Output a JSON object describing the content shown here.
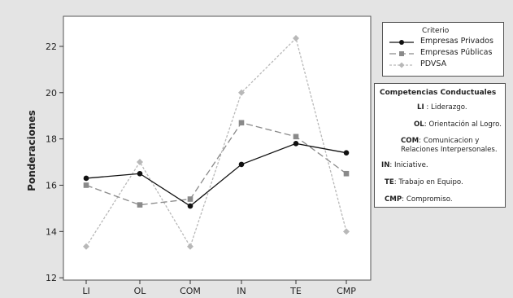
{
  "chart_data": {
    "type": "line",
    "categories": [
      "LI",
      "OL",
      "COM",
      "IN",
      "TE",
      "CMP"
    ],
    "ylabel": "Ponderaciones",
    "xlabel": "",
    "ylim": [
      11.9,
      23.3
    ],
    "yticks": [
      12,
      14,
      16,
      18,
      20,
      22
    ],
    "grid": false,
    "legend_title": "Criterio",
    "legend_placement": "right",
    "series": [
      {
        "name": "Empresas Privados",
        "values": [
          16.3,
          16.5,
          15.1,
          16.9,
          17.8,
          17.4
        ],
        "color": "#111111",
        "marker": "circle",
        "dash": "solid"
      },
      {
        "name": "Empresas Públicas",
        "values": [
          16.0,
          15.15,
          15.4,
          18.7,
          18.1,
          16.5
        ],
        "color": "#8a8a8a",
        "marker": "square",
        "dash": "long"
      },
      {
        "name": "PDVSA",
        "values": [
          13.35,
          17.0,
          13.35,
          20.0,
          22.35,
          14.0
        ],
        "color": "#b8b8b8",
        "marker": "diamond",
        "dash": "short"
      }
    ]
  },
  "competencias": {
    "title": "Competencias Conductuales",
    "items": [
      {
        "code": "LI",
        "sep": " : ",
        "desc": "Liderazgo."
      },
      {
        "code": "OL",
        "sep": ": ",
        "desc": "Orientación al Logro."
      },
      {
        "code": "COM",
        "sep": ": ",
        "desc": "Comunicacion y Relaciones Interpersonales."
      },
      {
        "code": "IN",
        "sep": ": ",
        "desc": "Iniciative."
      },
      {
        "code": "TE",
        "sep": ": ",
        "desc": "Trabajo en Equipo."
      },
      {
        "code": "CMP",
        "sep": ": ",
        "desc": "Compromiso."
      }
    ]
  }
}
